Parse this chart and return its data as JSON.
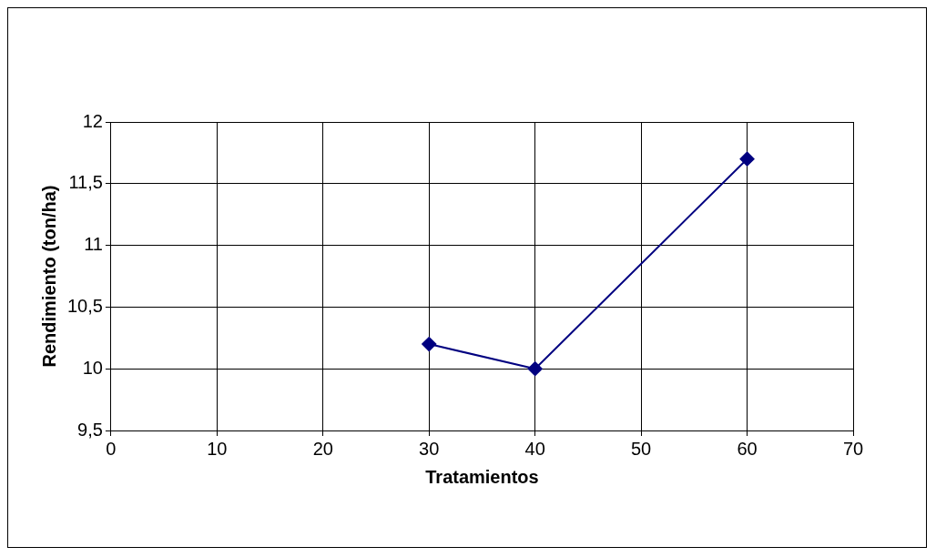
{
  "chart_data": {
    "type": "line",
    "xlabel": "Tratamientos",
    "ylabel": "Rendimiento (ton/ha)",
    "x": [
      30,
      40,
      60
    ],
    "series": [
      {
        "color": "#000080",
        "values": [
          10.2,
          10.0,
          11.7
        ]
      }
    ],
    "xlim": [
      0,
      70
    ],
    "xticks": [
      0,
      10,
      20,
      30,
      40,
      50,
      60,
      70
    ],
    "ylim": [
      9.5,
      12
    ],
    "yticks": [
      {
        "value": 9.5,
        "label": "9,5"
      },
      10,
      {
        "value": 10.5,
        "label": "10,5"
      },
      11,
      {
        "value": 11.5,
        "label": "11,5"
      },
      12
    ],
    "grid": true,
    "legend": false,
    "marker": "diamond",
    "line_style": "solid"
  }
}
